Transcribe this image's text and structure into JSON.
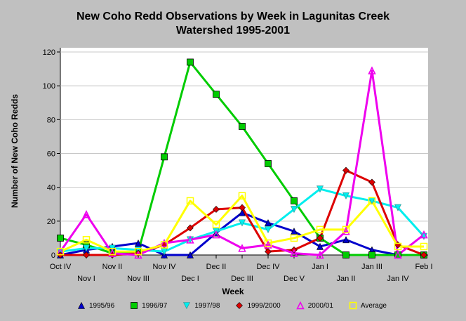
{
  "chart_data": {
    "type": "line",
    "title_lines": [
      "New Coho Redd Observations by Week in Lagunitas Creek",
      "Watershed 1995-2001"
    ],
    "xlabel": "Week",
    "ylabel": "Number of New Coho Redds",
    "categories": [
      "Oct IV",
      "Nov I",
      "Nov II",
      "Nov III",
      "Nov IV",
      "Dec I",
      "Dec II",
      "Dec III",
      "Dec IV",
      "Dec V",
      "Jan I",
      "Jan II",
      "Jan III",
      "Jan IV",
      "Feb I"
    ],
    "ylim": [
      0,
      120
    ],
    "yticks": [
      0,
      20,
      40,
      60,
      80,
      100,
      120
    ],
    "series": [
      {
        "name": "1995/96",
        "color": "#0000cc",
        "marker": "triangle-up",
        "values": [
          0,
          3,
          5,
          7,
          0,
          0,
          13,
          25,
          19,
          14,
          5,
          9,
          3,
          0,
          0
        ]
      },
      {
        "name": "1996/97",
        "color": "#00cc00",
        "marker": "square",
        "values": [
          10,
          6,
          1,
          2,
          58,
          114,
          95,
          76,
          54,
          32,
          10,
          0,
          0,
          0,
          0
        ]
      },
      {
        "name": "1997/98",
        "color": "#00eeee",
        "marker": "triangle-down",
        "values": [
          2,
          4,
          4,
          3,
          2,
          9,
          14,
          19,
          15,
          27,
          39,
          35,
          32,
          28,
          11
        ]
      },
      {
        "name": "1999/2000",
        "color": "#dd0000",
        "marker": "diamond",
        "values": [
          0,
          0,
          0,
          1,
          6,
          16,
          27,
          28,
          2,
          3,
          10,
          50,
          43,
          6,
          0
        ]
      },
      {
        "name": "2000/01",
        "color": "#ee00ee",
        "marker": "triangle-up-open",
        "values": [
          2,
          24,
          1,
          0,
          7,
          9,
          12,
          4,
          6,
          1,
          0,
          14,
          109,
          0,
          12
        ]
      },
      {
        "name": "Average",
        "color": "#ffff00",
        "marker": "square-open",
        "values": [
          2,
          9,
          2,
          2,
          6,
          32,
          18,
          35,
          7,
          10,
          15,
          15,
          32,
          5,
          5
        ]
      }
    ]
  }
}
